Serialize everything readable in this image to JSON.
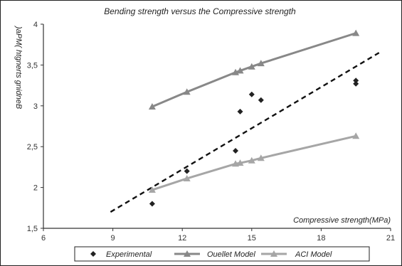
{
  "chart_data": {
    "type": "scatter",
    "title": "Bending strength versus the Compressive strength",
    "xlabel": "Compressive strength(MPa)",
    "ylabel": "Bending strength (MPa)",
    "xlim": [
      6,
      21
    ],
    "ylim": [
      1.5,
      4
    ],
    "xticks": [
      "6",
      "9",
      "12",
      "15",
      "18",
      "21"
    ],
    "yticks": [
      "1,5",
      "2",
      "2,5",
      "3",
      "3,5",
      "4"
    ],
    "grid": false,
    "legend": "bottom",
    "colors": {
      "experimental": "#222222",
      "ouellet": "#888888",
      "aci": "#a6a6a6",
      "trend": "#111111"
    },
    "series": [
      {
        "name": "Experimental",
        "marker": "diamond",
        "points": [
          [
            10.7,
            1.8
          ],
          [
            12.2,
            2.2
          ],
          [
            14.3,
            2.45
          ],
          [
            14.5,
            2.93
          ],
          [
            15.0,
            3.14
          ],
          [
            15.4,
            3.07
          ],
          [
            19.5,
            3.27
          ],
          [
            19.5,
            3.31
          ]
        ]
      },
      {
        "name": "Ouellet Model",
        "marker": "triangle",
        "points": [
          [
            10.7,
            2.99
          ],
          [
            12.2,
            3.17
          ],
          [
            14.3,
            3.41
          ],
          [
            14.5,
            3.43
          ],
          [
            15.0,
            3.48
          ],
          [
            15.4,
            3.52
          ],
          [
            19.5,
            3.89
          ]
        ]
      },
      {
        "name": "ACI Model",
        "marker": "triangle",
        "points": [
          [
            10.7,
            1.97
          ],
          [
            12.2,
            2.11
          ],
          [
            14.3,
            2.29
          ],
          [
            14.5,
            2.3
          ],
          [
            15.0,
            2.33
          ],
          [
            15.4,
            2.36
          ],
          [
            19.5,
            2.63
          ]
        ]
      }
    ],
    "trendline": {
      "style": "dashed",
      "points": [
        [
          8.9,
          1.7
        ],
        [
          20.5,
          3.65
        ]
      ]
    }
  }
}
